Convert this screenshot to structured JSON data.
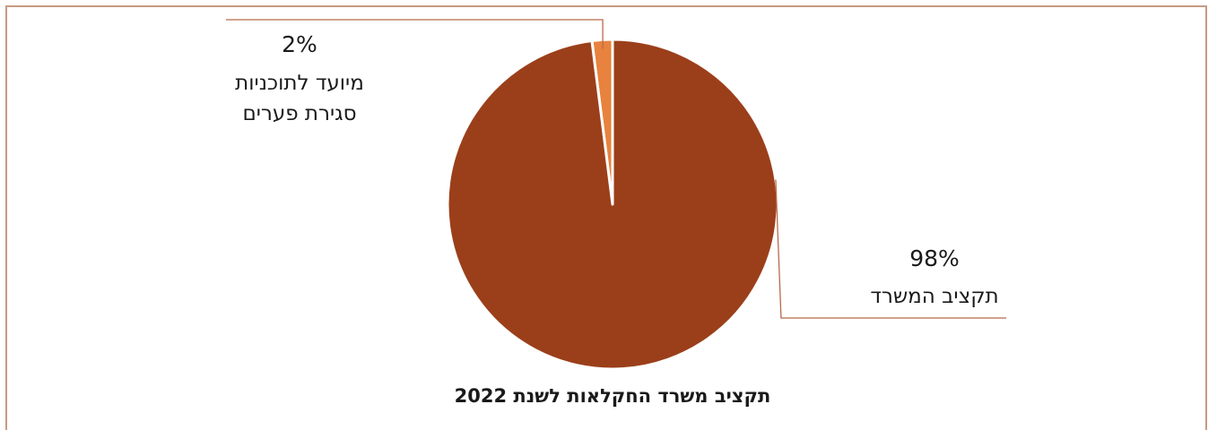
{
  "chart_data": {
    "type": "pie",
    "title": "תקציב משרד החקלאות לשנת 2022",
    "slices": [
      {
        "label_lines": [
          "מיועד לתוכניות",
          "סגירת פערים"
        ],
        "value": 2,
        "value_label": "2%",
        "color": "#e8823f"
      },
      {
        "label_lines": [
          "תקציב המשרד"
        ],
        "value": 98,
        "value_label": "98%",
        "color": "#9b3f1a"
      }
    ],
    "colors": {
      "frame": "#c79a82",
      "leader": "#b8694a"
    }
  }
}
